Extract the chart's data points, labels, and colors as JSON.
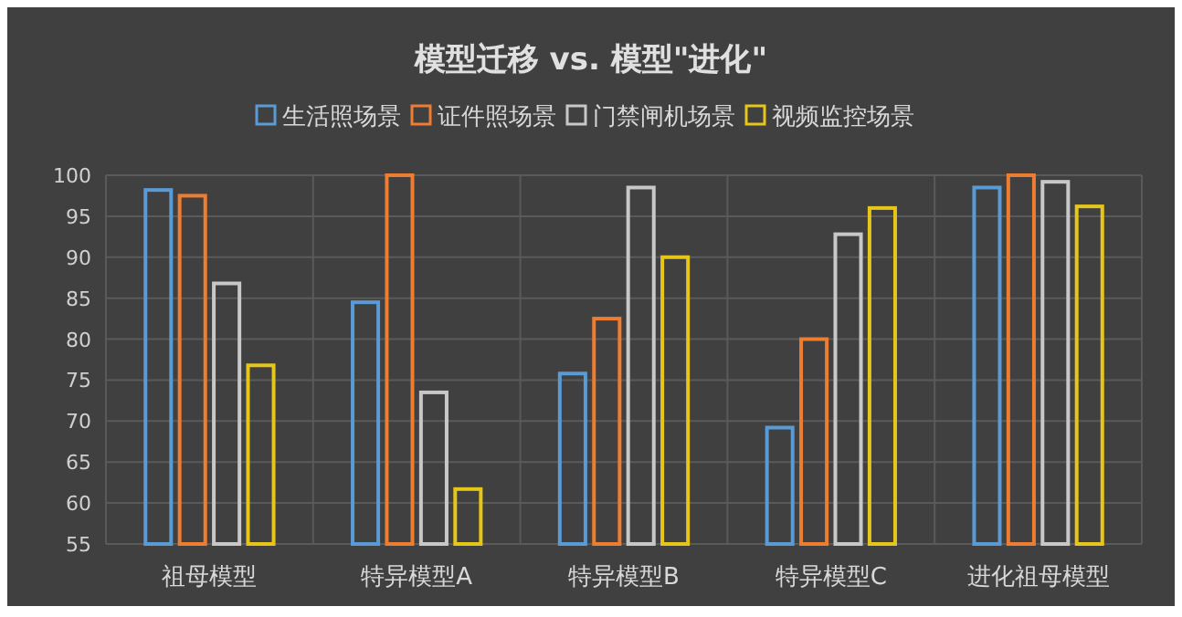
{
  "chart_data": {
    "type": "bar",
    "title": "模型迁移 vs. 模型\"进化\"",
    "categories": [
      "祖母模型",
      "特异模型A",
      "特异模型B",
      "特异模型C",
      "进化祖母模型"
    ],
    "series": [
      {
        "name": "生活照场景",
        "color": "#5b9bd5",
        "values": [
          98.2,
          84.5,
          75.8,
          69.2,
          98.5
        ]
      },
      {
        "name": "证件照场景",
        "color": "#ed7d31",
        "values": [
          97.5,
          100,
          82.5,
          80,
          100
        ]
      },
      {
        "name": "门禁闸机场景",
        "color": "#c8c8c8",
        "values": [
          86.8,
          73.5,
          98.5,
          92.8,
          99.2
        ]
      },
      {
        "name": "视频监控场景",
        "color": "#e6c619",
        "values": [
          76.8,
          61.7,
          90,
          96,
          96.2
        ]
      }
    ],
    "ylim": [
      55,
      100
    ],
    "yticks": [
      55,
      60,
      65,
      70,
      75,
      80,
      85,
      90,
      95,
      100
    ],
    "grid": true,
    "legend": "top"
  }
}
